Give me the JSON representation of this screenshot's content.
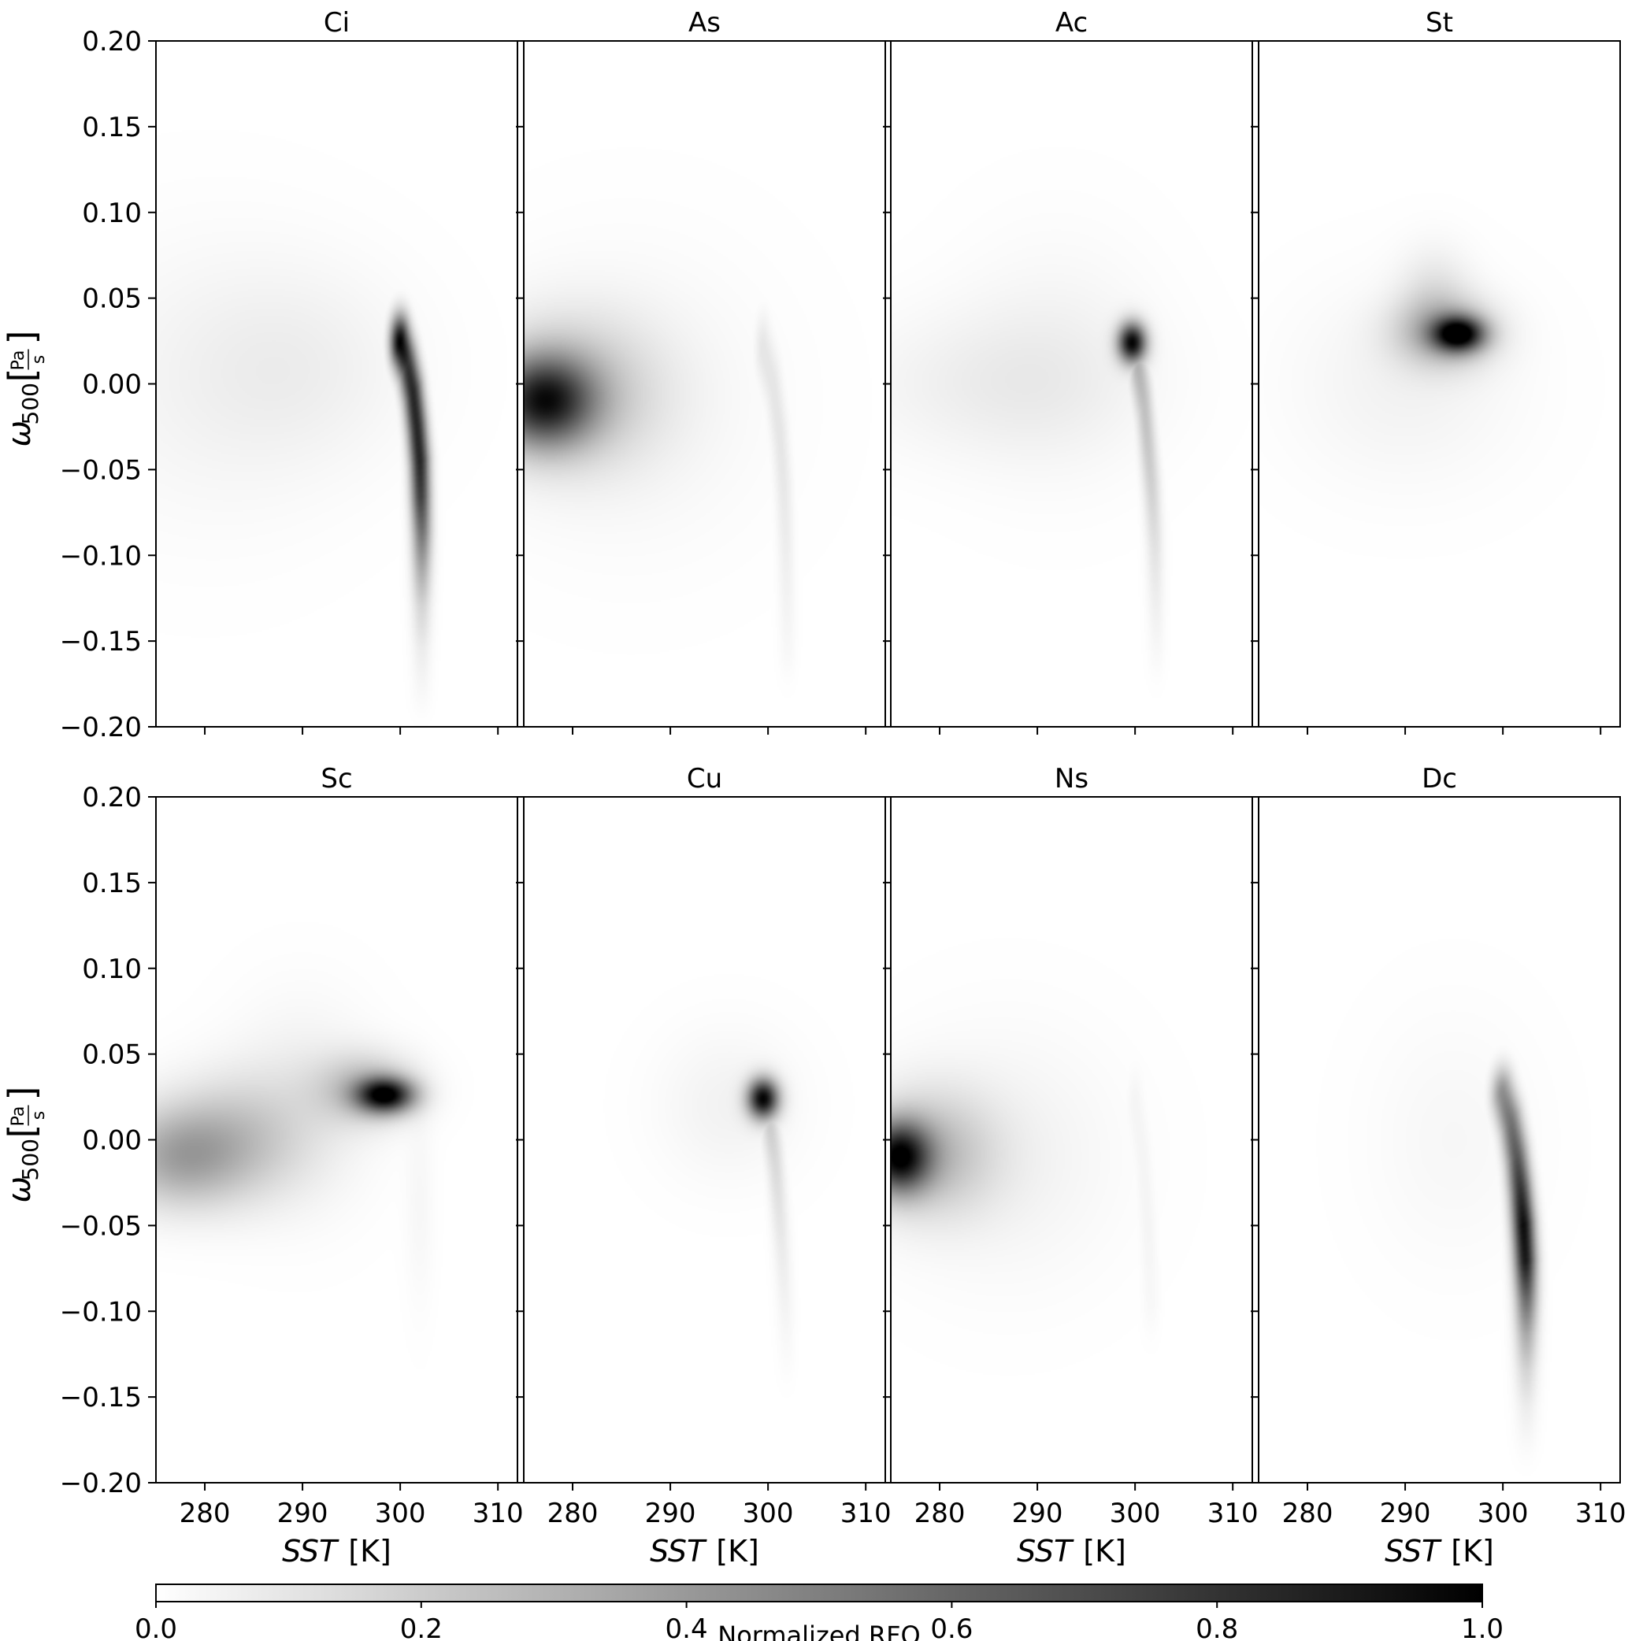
{
  "figure": {
    "colorbar": {
      "label": "Normalized RFO",
      "ticks": [
        "0.0",
        "0.2",
        "0.4",
        "0.6",
        "0.8",
        "1.0"
      ],
      "range": [
        0.0,
        1.0
      ],
      "colormap": "Greys",
      "color_low": "#ffffff",
      "color_high": "#000000",
      "orientation": "horizontal"
    }
  },
  "chart_data": [
    {
      "type": "heatmap",
      "title": "Ci",
      "xlabel": "",
      "ylabel": "ω500 [Pa/s]",
      "xlim": [
        275,
        312
      ],
      "ylim": [
        -0.2,
        0.2
      ],
      "xticks": [
        "280",
        "290",
        "300",
        "310"
      ],
      "show_xticklabels": false,
      "yticks": [
        "0.20",
        "0.15",
        "0.10",
        "0.05",
        "0.00",
        "−0.05",
        "−0.10",
        "−0.15",
        "−0.20"
      ],
      "features": [
        {
          "kind": "blob",
          "x": 280,
          "y": 0.0,
          "sx": 10,
          "sy": 0.06,
          "amp": 0.04
        },
        {
          "kind": "blob",
          "x": 290,
          "y": 0.01,
          "sx": 8,
          "sy": 0.04,
          "amp": 0.05
        },
        {
          "kind": "ridge",
          "points": [
            [
              300.0,
              0.024,
              1.0
            ],
            [
              300.7,
              0.012,
              0.8
            ],
            [
              301.3,
              -0.005,
              0.85
            ],
            [
              301.7,
              -0.025,
              0.85
            ],
            [
              302.0,
              -0.045,
              0.85
            ],
            [
              302.1,
              -0.065,
              0.75
            ],
            [
              302.2,
              -0.085,
              0.55
            ],
            [
              302.2,
              -0.105,
              0.35
            ],
            [
              302.2,
              -0.125,
              0.18
            ],
            [
              302.2,
              -0.15,
              0.08
            ],
            [
              302.2,
              -0.175,
              0.03
            ]
          ],
          "sx": 0.7,
          "sy": 0.011
        }
      ]
    },
    {
      "type": "heatmap",
      "title": "As",
      "xlabel": "",
      "ylabel": "",
      "xlim": [
        275,
        312
      ],
      "ylim": [
        -0.2,
        0.2
      ],
      "xticks": [
        "280",
        "290",
        "300",
        "310"
      ],
      "show_xticklabels": false,
      "yticks": [],
      "features": [
        {
          "kind": "blob",
          "x": 277.0,
          "y": -0.01,
          "sx": 3.5,
          "sy": 0.018,
          "amp": 0.75
        },
        {
          "kind": "blob",
          "x": 280.0,
          "y": -0.005,
          "sx": 6,
          "sy": 0.03,
          "amp": 0.22
        },
        {
          "kind": "blob",
          "x": 286,
          "y": -0.01,
          "sx": 10,
          "sy": 0.06,
          "amp": 0.04
        },
        {
          "kind": "ridge",
          "points": [
            [
              299.5,
              0.02,
              0.1
            ],
            [
              300.5,
              0.0,
              0.1
            ],
            [
              301.2,
              -0.03,
              0.1
            ],
            [
              301.6,
              -0.06,
              0.09
            ],
            [
              301.8,
              -0.09,
              0.07
            ],
            [
              301.9,
              -0.12,
              0.05
            ],
            [
              302.0,
              -0.15,
              0.03
            ]
          ],
          "sx": 0.6,
          "sy": 0.014
        }
      ]
    },
    {
      "type": "heatmap",
      "title": "Ac",
      "xlabel": "",
      "ylabel": "",
      "xlim": [
        275,
        312
      ],
      "ylim": [
        -0.2,
        0.2
      ],
      "xticks": [
        "280",
        "290",
        "300",
        "310"
      ],
      "show_xticklabels": false,
      "yticks": [],
      "features": [
        {
          "kind": "blob",
          "x": 285,
          "y": 0.0,
          "sx": 10,
          "sy": 0.03,
          "amp": 0.06
        },
        {
          "kind": "blob",
          "x": 292,
          "y": 0.015,
          "sx": 7,
          "sy": 0.05,
          "amp": 0.04
        },
        {
          "kind": "blob",
          "x": 299.7,
          "y": 0.024,
          "sx": 1.0,
          "sy": 0.008,
          "amp": 0.95
        },
        {
          "kind": "ridge",
          "points": [
            [
              300.3,
              0.01,
              0.3
            ],
            [
              300.9,
              -0.01,
              0.25
            ],
            [
              301.3,
              -0.035,
              0.22
            ],
            [
              301.7,
              -0.06,
              0.18
            ],
            [
              302.0,
              -0.09,
              0.12
            ],
            [
              302.1,
              -0.12,
              0.07
            ],
            [
              302.2,
              -0.15,
              0.03
            ]
          ],
          "sx": 0.6,
          "sy": 0.014
        }
      ]
    },
    {
      "type": "heatmap",
      "title": "St",
      "xlabel": "",
      "ylabel": "",
      "xlim": [
        275,
        312
      ],
      "ylim": [
        -0.2,
        0.2
      ],
      "xticks": [
        "280",
        "290",
        "300",
        "310"
      ],
      "show_xticklabels": false,
      "yticks": [],
      "features": [
        {
          "kind": "blob",
          "x": 295.5,
          "y": 0.029,
          "sx": 1.8,
          "sy": 0.007,
          "amp": 0.9
        },
        {
          "kind": "blob",
          "x": 294.0,
          "y": 0.03,
          "sx": 3.5,
          "sy": 0.014,
          "amp": 0.3
        },
        {
          "kind": "blob",
          "x": 293.0,
          "y": 0.05,
          "sx": 2.5,
          "sy": 0.02,
          "amp": 0.1
        },
        {
          "kind": "blob",
          "x": 290,
          "y": 0.0,
          "sx": 8,
          "sy": 0.04,
          "amp": 0.05
        }
      ]
    },
    {
      "type": "heatmap",
      "title": "Sc",
      "xlabel": "SST  [K]",
      "ylabel": "ω500 [Pa/s]",
      "xlim": [
        275,
        312
      ],
      "ylim": [
        -0.2,
        0.2
      ],
      "xticks": [
        "280",
        "290",
        "300",
        "310"
      ],
      "show_xticklabels": true,
      "yticks": [
        "0.20",
        "0.15",
        "0.10",
        "0.05",
        "0.00",
        "−0.05",
        "−0.10",
        "−0.15",
        "−0.20"
      ],
      "features": [
        {
          "kind": "blob",
          "x": 277,
          "y": -0.01,
          "sx": 4.5,
          "sy": 0.02,
          "amp": 0.3
        },
        {
          "kind": "blob",
          "x": 283,
          "y": 0.0,
          "sx": 5,
          "sy": 0.025,
          "amp": 0.2
        },
        {
          "kind": "blob",
          "x": 290,
          "y": 0.02,
          "sx": 5,
          "sy": 0.04,
          "amp": 0.07
        },
        {
          "kind": "blob",
          "x": 298.5,
          "y": 0.026,
          "sx": 2.0,
          "sy": 0.007,
          "amp": 0.9
        },
        {
          "kind": "blob",
          "x": 296.5,
          "y": 0.03,
          "sx": 3.5,
          "sy": 0.014,
          "amp": 0.25
        },
        {
          "kind": "blob",
          "x": 302,
          "y": -0.04,
          "sx": 1.0,
          "sy": 0.04,
          "amp": 0.03
        }
      ]
    },
    {
      "type": "heatmap",
      "title": "Cu",
      "xlabel": "SST  [K]",
      "ylabel": "",
      "xlim": [
        275,
        312
      ],
      "ylim": [
        -0.2,
        0.2
      ],
      "xticks": [
        "280",
        "290",
        "300",
        "310"
      ],
      "show_xticklabels": true,
      "yticks": [],
      "features": [
        {
          "kind": "blob",
          "x": 299.5,
          "y": 0.024,
          "sx": 1.1,
          "sy": 0.008,
          "amp": 0.95
        },
        {
          "kind": "blob",
          "x": 296,
          "y": 0.02,
          "sx": 5,
          "sy": 0.03,
          "amp": 0.05
        },
        {
          "kind": "ridge",
          "points": [
            [
              300.2,
              0.01,
              0.2
            ],
            [
              300.7,
              -0.01,
              0.15
            ],
            [
              301.0,
              -0.03,
              0.12
            ],
            [
              301.4,
              -0.06,
              0.08
            ],
            [
              301.7,
              -0.09,
              0.05
            ],
            [
              301.9,
              -0.12,
              0.02
            ]
          ],
          "sx": 0.6,
          "sy": 0.014
        }
      ]
    },
    {
      "type": "heatmap",
      "title": "Ns",
      "xlabel": "SST  [K]",
      "ylabel": "",
      "xlim": [
        275,
        312
      ],
      "ylim": [
        -0.2,
        0.2
      ],
      "xticks": [
        "280",
        "290",
        "300",
        "310"
      ],
      "show_xticklabels": true,
      "yticks": [],
      "features": [
        {
          "kind": "blob",
          "x": 275.8,
          "y": -0.01,
          "sx": 2.2,
          "sy": 0.014,
          "amp": 0.85
        },
        {
          "kind": "blob",
          "x": 279,
          "y": -0.008,
          "sx": 4.5,
          "sy": 0.025,
          "amp": 0.25
        },
        {
          "kind": "blob",
          "x": 287,
          "y": -0.01,
          "sx": 8,
          "sy": 0.05,
          "amp": 0.05
        },
        {
          "kind": "ridge",
          "points": [
            [
              300.0,
              0.02,
              0.04
            ],
            [
              300.8,
              -0.01,
              0.04
            ],
            [
              301.3,
              -0.05,
              0.04
            ],
            [
              301.6,
              -0.09,
              0.03
            ]
          ],
          "sx": 0.6,
          "sy": 0.015
        }
      ]
    },
    {
      "type": "heatmap",
      "title": "Dc",
      "xlabel": "SST  [K]",
      "ylabel": "",
      "xlim": [
        275,
        312
      ],
      "ylim": [
        -0.2,
        0.2
      ],
      "xticks": [
        "280",
        "290",
        "300",
        "310"
      ],
      "show_xticklabels": true,
      "yticks": [],
      "features": [
        {
          "kind": "blob",
          "x": 295,
          "y": 0.0,
          "sx": 6,
          "sy": 0.05,
          "amp": 0.03
        },
        {
          "kind": "ridge",
          "points": [
            [
              300.0,
              0.026,
              0.45
            ],
            [
              300.8,
              0.01,
              0.55
            ],
            [
              301.4,
              -0.01,
              0.65
            ],
            [
              301.8,
              -0.03,
              0.8
            ],
            [
              302.1,
              -0.05,
              0.95
            ],
            [
              302.3,
              -0.07,
              0.9
            ],
            [
              302.4,
              -0.09,
              0.6
            ],
            [
              302.4,
              -0.11,
              0.35
            ],
            [
              302.4,
              -0.13,
              0.18
            ],
            [
              302.4,
              -0.15,
              0.08
            ],
            [
              302.4,
              -0.17,
              0.03
            ]
          ],
          "sx": 0.8,
          "sy": 0.011
        }
      ]
    }
  ]
}
